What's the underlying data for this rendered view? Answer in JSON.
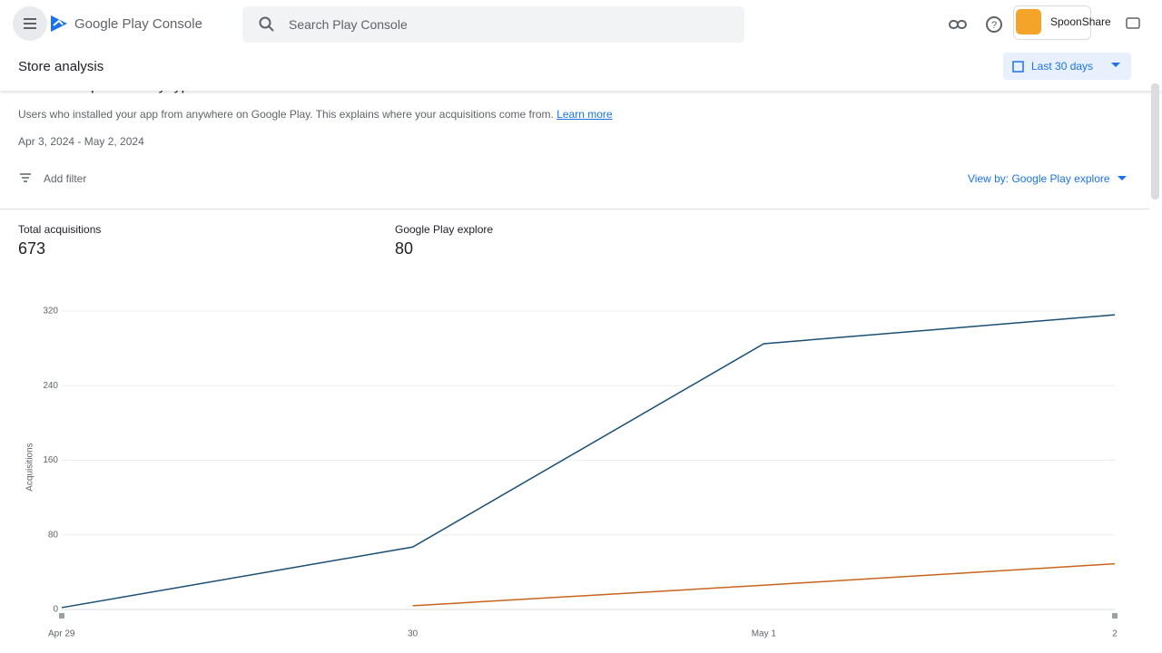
{
  "header": {
    "product": "Google Play Console",
    "search_placeholder": "Search Play Console",
    "app_name": "SpoonShare"
  },
  "toolbar": {
    "title": "Store analysis",
    "date_range": "Last 30 days"
  },
  "section": {
    "title": "All user acquisitions by type",
    "description": "Users who installed your app from anywhere on Google Play. This explains where your acquisitions come from.",
    "learn_more": "Learn more",
    "period": "Apr 3, 2024 - May 2, 2024",
    "filter": "Add filter",
    "view_by": "View by: Google Play explore"
  },
  "metrics": [
    {
      "label": "Total acquisitions",
      "value": 673
    },
    {
      "label": "Google Play explore",
      "value": 80
    }
  ],
  "chart_data": {
    "type": "line",
    "y_label": "Acquisitions",
    "categories": [
      "Apr 29",
      "30",
      "May 1",
      "2"
    ],
    "series": [
      {
        "color": "#1a4e73",
        "values": [
          2,
          67,
          285,
          316
        ]
      },
      {
        "color": "#c8641c",
        "values": [
          null,
          4,
          26,
          49
        ]
      }
    ],
    "ylim": [
      0,
      320
    ],
    "yticks": [
      0,
      80,
      160,
      240,
      320
    ],
    "grid": true
  }
}
